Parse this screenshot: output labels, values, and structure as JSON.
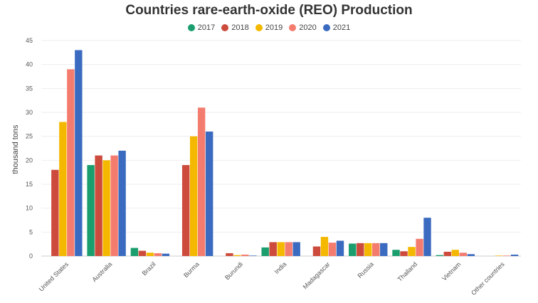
{
  "chart_data": {
    "type": "bar",
    "title": "Countries rare-earth-oxide (REO) Production",
    "xlabel": "",
    "ylabel": "thousand tons",
    "ylim": [
      0,
      45
    ],
    "yticks": [
      0,
      5,
      10,
      15,
      20,
      25,
      30,
      35,
      40,
      45
    ],
    "grid": true,
    "legend_position": "top-center",
    "categories": [
      "United States",
      "Australia",
      "Brazil",
      "Burma",
      "Burundi",
      "India",
      "Madagascar",
      "Russia",
      "Thailand",
      "Vietnam",
      "Other countries"
    ],
    "series": [
      {
        "name": "2017",
        "color": "#1a9e6e",
        "values": [
          null,
          19,
          1.7,
          null,
          null,
          1.8,
          null,
          2.6,
          1.3,
          0.2,
          null
        ]
      },
      {
        "name": "2018",
        "color": "#cc4b3c",
        "values": [
          18,
          21,
          1.1,
          19,
          0.6,
          2.9,
          2,
          2.7,
          1,
          0.9,
          null
        ]
      },
      {
        "name": "2019",
        "color": "#f5b800",
        "values": [
          28,
          20,
          0.7,
          25,
          0.2,
          2.9,
          4,
          2.7,
          1.9,
          1.3,
          0.1
        ]
      },
      {
        "name": "2020",
        "color": "#f47c6f",
        "values": [
          39,
          21,
          0.6,
          31,
          0.3,
          2.9,
          2.8,
          2.7,
          3.6,
          0.7,
          0.1
        ]
      },
      {
        "name": "2021",
        "color": "#3b6bc0",
        "values": [
          43,
          22,
          0.5,
          26,
          0.1,
          2.9,
          3.2,
          2.7,
          8,
          0.4,
          0.3
        ]
      }
    ]
  }
}
